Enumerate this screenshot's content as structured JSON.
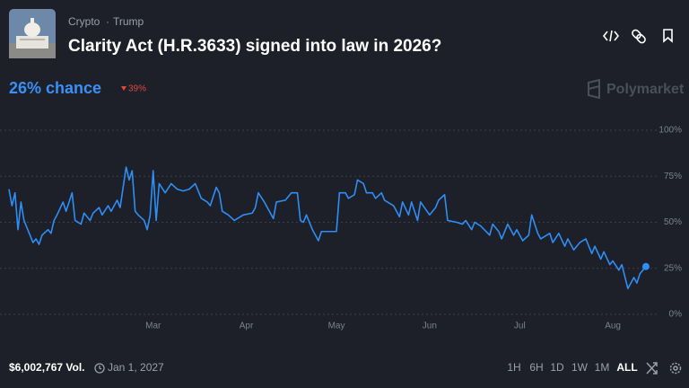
{
  "header": {
    "category": "Crypto",
    "tag": "Trump",
    "title": "Clarity Act (H.R.3633) signed into law in 2026?"
  },
  "summary": {
    "chance": "26% chance",
    "change": "39%"
  },
  "brand": "Polymarket",
  "chart_data": {
    "type": "line",
    "x": [
      12,
      13,
      14,
      15,
      16,
      17,
      19,
      20,
      21,
      22,
      23,
      25,
      26,
      27,
      28,
      30,
      31,
      33,
      34,
      36,
      37,
      39,
      40,
      42,
      43,
      45,
      46,
      48,
      49,
      51,
      52,
      53,
      54,
      55,
      57,
      58,
      59,
      60,
      61,
      62,
      64,
      66,
      68,
      70,
      72,
      74,
      76,
      78,
      79,
      81,
      82,
      83,
      85,
      87,
      90,
      93,
      94,
      95,
      97,
      98,
      100,
      101,
      104,
      106,
      108,
      109,
      110,
      111,
      113,
      114,
      115,
      116,
      118,
      119,
      121,
      122,
      124,
      125,
      127,
      128,
      130,
      131,
      133,
      134,
      136,
      137,
      140,
      142,
      143,
      145,
      146,
      148,
      149,
      152,
      154,
      155,
      157,
      158,
      161,
      163,
      164,
      166,
      167,
      169,
      172,
      173,
      175,
      176,
      178,
      180,
      181,
      183,
      185,
      186,
      188,
      189,
      192,
      193,
      195,
      197,
      198,
      200,
      202,
      204,
      206,
      207,
      209,
      210,
      212,
      213,
      215,
      216,
      218,
      220,
      221,
      222,
      224
    ],
    "series": [
      {
        "color": "#2e8ef5",
        "values": [
          68,
          59,
          66,
          46,
          61,
          51,
          43,
          39,
          41,
          38,
          43,
          46,
          44,
          51,
          54,
          61,
          56,
          66,
          51,
          49,
          55,
          51,
          55,
          58,
          54,
          59,
          56,
          62,
          58,
          80,
          73,
          78,
          56,
          54,
          51,
          46,
          54,
          78,
          51,
          71,
          66,
          71,
          68,
          67,
          68,
          71,
          63,
          61,
          59,
          69,
          66,
          56,
          54,
          51,
          54,
          55,
          58,
          66,
          61,
          58,
          52,
          61,
          62,
          66,
          66,
          51,
          50,
          54,
          46,
          43,
          40,
          45,
          45,
          45,
          45,
          66,
          66,
          63,
          65,
          73,
          71,
          66,
          66,
          63,
          66,
          62,
          59,
          53,
          61,
          54,
          61,
          51,
          61,
          54,
          58,
          62,
          65,
          51,
          50,
          49,
          51,
          46,
          50,
          48,
          43,
          49,
          45,
          41,
          49,
          43,
          46,
          40,
          43,
          54,
          44,
          41,
          44,
          39,
          44,
          37,
          41,
          35,
          39,
          41,
          33,
          37,
          30,
          34,
          27,
          29,
          24,
          27,
          14,
          20,
          17,
          22,
          26
        ]
      }
    ],
    "xlim": [
      12,
      227
    ],
    "xticks": [
      {
        "value": 60,
        "label": "Mar"
      },
      {
        "value": 91,
        "label": "Apr"
      },
      {
        "value": 121,
        "label": "May"
      },
      {
        "value": 152,
        "label": "Jun"
      },
      {
        "value": 182,
        "label": "Jul"
      },
      {
        "value": 213,
        "label": "Aug"
      }
    ],
    "ylim": [
      0,
      100
    ],
    "yticks": [
      {
        "value": 0,
        "label": "0%"
      },
      {
        "value": 25,
        "label": "25%"
      },
      {
        "value": 50,
        "label": "50%"
      },
      {
        "value": 75,
        "label": "75%"
      },
      {
        "value": 100,
        "label": "100%"
      }
    ],
    "grid": true
  },
  "footer": {
    "volume": "$6,002,767 Vol.",
    "end_date": "Jan 1, 2027",
    "ranges": [
      "1H",
      "6H",
      "1D",
      "1W",
      "1M",
      "ALL"
    ]
  }
}
